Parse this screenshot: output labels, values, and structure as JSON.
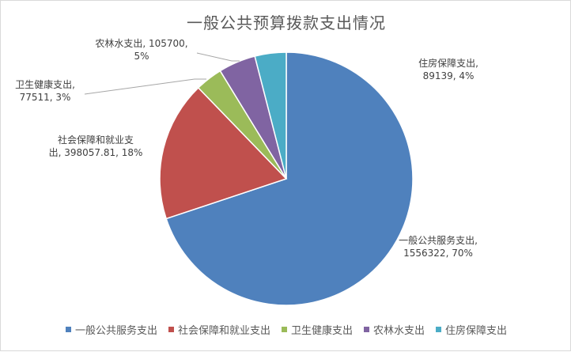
{
  "chart_data": {
    "type": "pie",
    "title": "一般公共预算拨款支出情况",
    "slices": [
      {
        "name": "一般公共服务支出",
        "value": 1556322,
        "percent": 70,
        "color": "#4f81bd",
        "label": [
          "一般公共服务支出,",
          "1556322, 70%"
        ]
      },
      {
        "name": "社会保障和就业支出",
        "value": 398057.81,
        "percent": 18,
        "color": "#c0504d",
        "label": [
          "社会保障和就业支",
          "出, 398057.81, 18%"
        ]
      },
      {
        "name": "卫生健康支出",
        "value": 77511,
        "percent": 3,
        "color": "#9bbb59",
        "label": [
          "卫生健康支出,",
          "77511, 3%"
        ]
      },
      {
        "name": "农林水支出",
        "value": 105700,
        "percent": 5,
        "color": "#8064a2",
        "label": [
          "农林水支出, 105700,",
          "5%"
        ]
      },
      {
        "name": "住房保障支出",
        "value": 89139,
        "percent": 4,
        "color": "#4bacc6",
        "label": [
          "住房保障支出,",
          "89139, 4%"
        ]
      }
    ],
    "legend_position": "bottom"
  }
}
